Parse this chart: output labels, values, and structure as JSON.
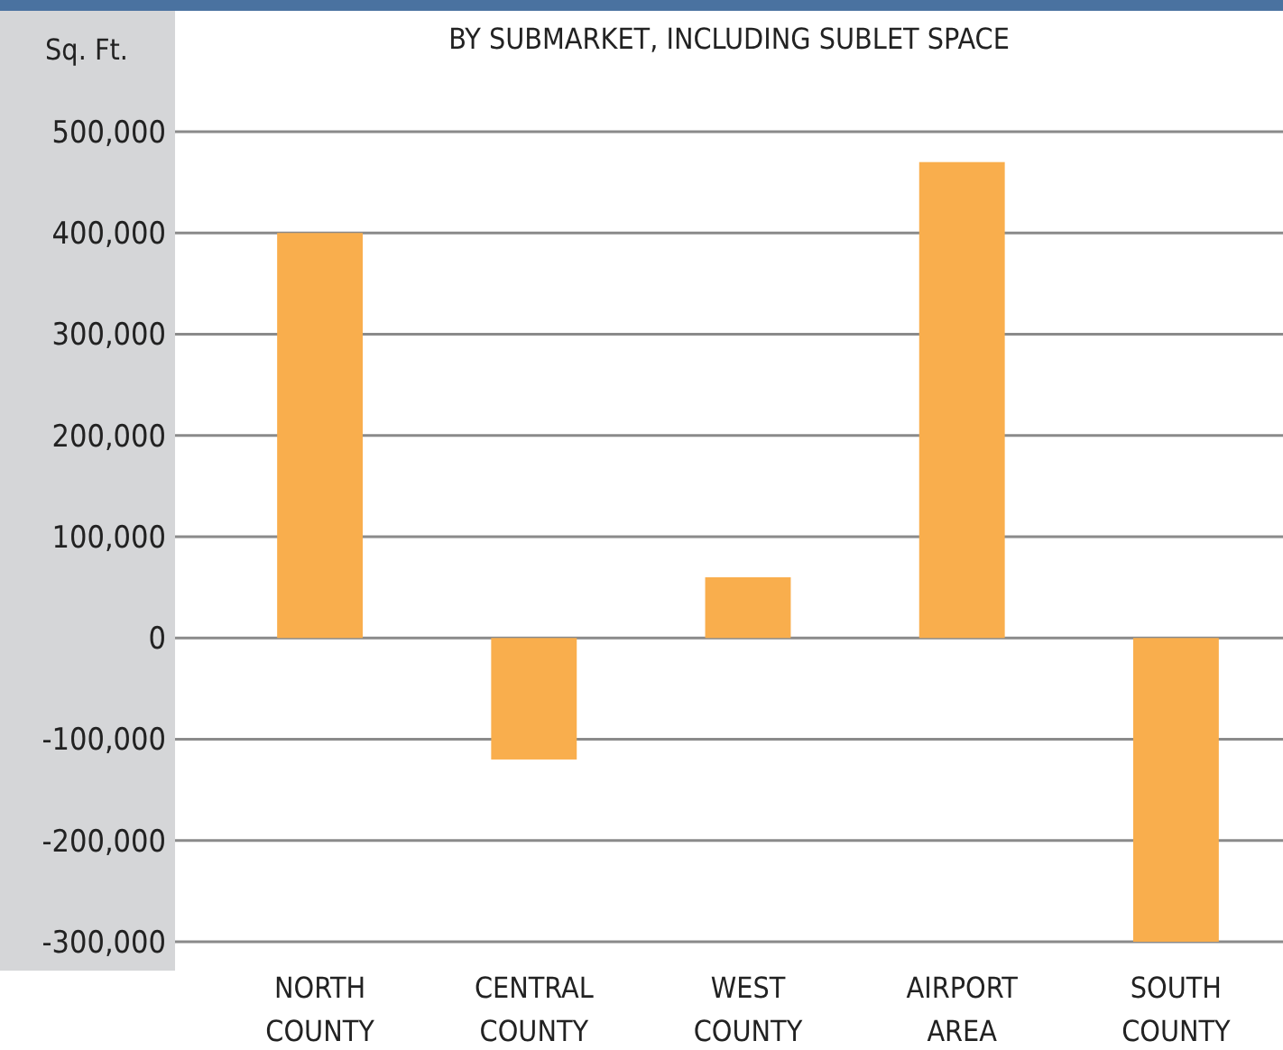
{
  "chart_data": {
    "type": "bar",
    "title": "BY SUBMARKET, INCLUDING SUBLET SPACE",
    "ylabel": "Sq. Ft.",
    "categories": [
      "NORTH COUNTY",
      "CENTRAL COUNTY",
      "WEST COUNTY",
      "AIRPORT AREA",
      "SOUTH COUNTY"
    ],
    "values": [
      400000,
      -120000,
      60000,
      470000,
      -300000
    ],
    "color": "#f9ae4d",
    "ylim": [
      -300000,
      500000
    ],
    "yticks": [
      {
        "value": -300000,
        "label": "-300,000"
      },
      {
        "value": -200000,
        "label": "-200,000"
      },
      {
        "value": -100000,
        "label": "-100,000"
      },
      0,
      {
        "value": 100000,
        "label": "100,000"
      },
      {
        "value": 200000,
        "label": "200,000"
      },
      {
        "value": 300000,
        "label": "300,000"
      },
      {
        "value": 400000,
        "label": "400,000"
      },
      {
        "value": 500000,
        "label": "500,000"
      }
    ],
    "grid": "y"
  }
}
